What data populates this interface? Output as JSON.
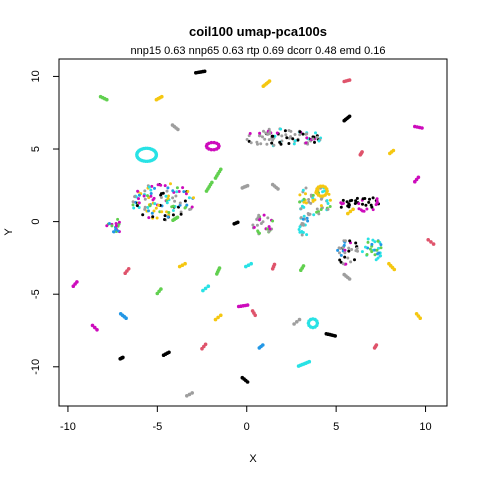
{
  "chart_data": {
    "type": "scatter",
    "title": "coil100 umap-pca100s",
    "subtitle": "nnp15 0.63 nnp65 0.63 rtp 0.69 dcorr 0.48 emd 0.16",
    "xlabel": "X",
    "ylabel": "Y",
    "xlim": [
      -10.5,
      11.2
    ],
    "ylim": [
      -12.7,
      11.2
    ],
    "xticks": [
      -10,
      -5,
      0,
      5,
      10
    ],
    "yticks": [
      -10,
      -5,
      0,
      5,
      10
    ],
    "grid": false,
    "legend": "none",
    "series_colors": {
      "pink": "#DF536B",
      "green": "#61D04F",
      "blue": "#2297E6",
      "cyan": "#28E2E5",
      "magenta": "#CD0BBC",
      "yellow": "#F5C710",
      "gray": "#9E9E9E",
      "black": "#000000"
    },
    "clusters": [
      {
        "color": "black",
        "x": -2.6,
        "y": 10.3,
        "dx": 0.5,
        "dy": 0.1,
        "n": 6
      },
      {
        "color": "yellow",
        "x": 1.1,
        "y": 9.5,
        "dx": 0.35,
        "dy": 0.35,
        "n": 5
      },
      {
        "color": "pink",
        "x": 5.6,
        "y": 9.7,
        "dx": 0.3,
        "dy": 0.1,
        "n": 4
      },
      {
        "color": "green",
        "x": -8.0,
        "y": 8.5,
        "dx": 0.35,
        "dy": -0.2,
        "n": 4
      },
      {
        "color": "yellow",
        "x": -4.9,
        "y": 8.5,
        "dx": 0.3,
        "dy": 0.2,
        "n": 4
      },
      {
        "color": "black",
        "x": 5.6,
        "y": 7.1,
        "dx": 0.3,
        "dy": 0.3,
        "n": 5
      },
      {
        "color": "magenta",
        "x": 9.6,
        "y": 6.5,
        "dx": 0.4,
        "dy": -0.1,
        "n": 4
      },
      {
        "color": "pink",
        "x": 6.4,
        "y": 4.7,
        "dx": 0.1,
        "dy": 0.2,
        "n": 4
      },
      {
        "color": "yellow",
        "x": 8.1,
        "y": 4.8,
        "dx": 0.2,
        "dy": 0.2,
        "n": 3
      },
      {
        "color": "gray",
        "x": -4.0,
        "y": 6.5,
        "dx": 0.3,
        "dy": -0.3,
        "n": 4
      },
      {
        "color": "green",
        "x": -1.6,
        "y": 3.3,
        "dx": 0.3,
        "dy": 0.6,
        "n": 5
      },
      {
        "color": "green",
        "x": -2.1,
        "y": 2.4,
        "dx": 0.3,
        "dy": 0.6,
        "n": 5
      },
      {
        "color": "gray",
        "x": 1.6,
        "y": 2.4,
        "dx": 0.3,
        "dy": -0.3,
        "n": 4
      },
      {
        "color": "gray",
        "x": -0.1,
        "y": 2.4,
        "dx": 0.3,
        "dy": 0.15,
        "n": 4
      },
      {
        "color": "magenta",
        "x": 9.5,
        "y": 2.9,
        "dx": 0.2,
        "dy": 0.3,
        "n": 3
      },
      {
        "color": "black",
        "x": -0.6,
        "y": -0.1,
        "dx": 0.2,
        "dy": 0.1,
        "n": 3
      },
      {
        "color": "green",
        "x": -4.0,
        "y": 0.2,
        "dx": 0.25,
        "dy": 0.2,
        "n": 4
      },
      {
        "color": "pink",
        "x": 10.3,
        "y": -1.4,
        "dx": 0.3,
        "dy": -0.3,
        "n": 3
      },
      {
        "color": "yellow",
        "x": 8.1,
        "y": -3.1,
        "dx": 0.3,
        "dy": -0.4,
        "n": 4
      },
      {
        "color": "yellow",
        "x": 5.8,
        "y": 0.7,
        "dx": 0.3,
        "dy": 0.3,
        "n": 3
      },
      {
        "color": "gray",
        "x": 5.6,
        "y": -3.8,
        "dx": 0.3,
        "dy": -0.3,
        "n": 4
      },
      {
        "color": "magenta",
        "x": -9.6,
        "y": -4.3,
        "dx": 0.2,
        "dy": 0.3,
        "n": 3
      },
      {
        "color": "pink",
        "x": -6.7,
        "y": -3.4,
        "dx": 0.2,
        "dy": 0.3,
        "n": 3
      },
      {
        "color": "yellow",
        "x": -3.6,
        "y": -3.0,
        "dx": 0.3,
        "dy": 0.2,
        "n": 3
      },
      {
        "color": "green",
        "x": -1.6,
        "y": -3.4,
        "dx": 0.15,
        "dy": 0.4,
        "n": 4
      },
      {
        "color": "cyan",
        "x": -2.3,
        "y": -4.6,
        "dx": 0.3,
        "dy": 0.3,
        "n": 3
      },
      {
        "color": "cyan",
        "x": 0.1,
        "y": -3.0,
        "dx": 0.3,
        "dy": 0.2,
        "n": 3
      },
      {
        "color": "pink",
        "x": 1.5,
        "y": -3.1,
        "dx": 0.1,
        "dy": 0.3,
        "n": 3
      },
      {
        "color": "green",
        "x": 3.1,
        "y": -3.2,
        "dx": 0.15,
        "dy": 0.3,
        "n": 3
      },
      {
        "color": "green",
        "x": -4.9,
        "y": -4.8,
        "dx": 0.2,
        "dy": 0.3,
        "n": 3
      },
      {
        "color": "blue",
        "x": -6.9,
        "y": -6.5,
        "dx": 0.3,
        "dy": -0.3,
        "n": 4
      },
      {
        "color": "magenta",
        "x": -0.2,
        "y": -5.8,
        "dx": 0.5,
        "dy": 0.1,
        "n": 5
      },
      {
        "color": "pink",
        "x": 0.4,
        "y": -6.3,
        "dx": 0.15,
        "dy": -0.3,
        "n": 3
      },
      {
        "color": "yellow",
        "x": -1.6,
        "y": -6.6,
        "dx": 0.3,
        "dy": 0.3,
        "n": 3
      },
      {
        "color": "gray",
        "x": 2.8,
        "y": -6.9,
        "dx": 0.3,
        "dy": 0.3,
        "n": 3
      },
      {
        "color": "yellow",
        "x": 9.6,
        "y": -6.5,
        "dx": 0.2,
        "dy": -0.3,
        "n": 3
      },
      {
        "color": "black",
        "x": 4.7,
        "y": -7.8,
        "dx": 0.5,
        "dy": -0.15,
        "n": 6
      },
      {
        "color": "magenta",
        "x": -8.5,
        "y": -7.3,
        "dx": 0.25,
        "dy": -0.3,
        "n": 3
      },
      {
        "color": "black",
        "x": -4.5,
        "y": -9.1,
        "dx": 0.3,
        "dy": 0.2,
        "n": 4
      },
      {
        "color": "black",
        "x": -7.0,
        "y": -9.4,
        "dx": 0.15,
        "dy": 0.1,
        "n": 5
      },
      {
        "color": "pink",
        "x": -2.4,
        "y": -8.6,
        "dx": 0.2,
        "dy": 0.3,
        "n": 3
      },
      {
        "color": "blue",
        "x": 0.8,
        "y": -8.6,
        "dx": 0.2,
        "dy": 0.2,
        "n": 3
      },
      {
        "color": "pink",
        "x": 7.2,
        "y": -8.6,
        "dx": 0.1,
        "dy": 0.2,
        "n": 3
      },
      {
        "color": "cyan",
        "x": 3.2,
        "y": -9.8,
        "dx": 0.6,
        "dy": 0.3,
        "n": 7
      },
      {
        "color": "gray",
        "x": -3.2,
        "y": -11.9,
        "dx": 0.3,
        "dy": 0.2,
        "n": 3
      },
      {
        "color": "black",
        "x": -0.1,
        "y": -10.9,
        "dx": 0.3,
        "dy": -0.3,
        "n": 4
      }
    ],
    "dense_groups": [
      {
        "x": -4.7,
        "y": 1.4,
        "rx": 1.8,
        "ry": 1.3,
        "n": 120,
        "colors": [
          "magenta",
          "yellow",
          "gray",
          "green",
          "blue",
          "cyan",
          "black"
        ]
      },
      {
        "x": 2.0,
        "y": 5.8,
        "rx": 2.3,
        "ry": 0.6,
        "n": 90,
        "colors": [
          "magenta",
          "gray",
          "cyan",
          "black",
          "gray"
        ]
      },
      {
        "x": 3.8,
        "y": 1.4,
        "rx": 1.0,
        "ry": 1.1,
        "n": 60,
        "colors": [
          "cyan",
          "gray",
          "yellow",
          "green",
          "gray"
        ]
      },
      {
        "x": 6.4,
        "y": 1.2,
        "rx": 1.4,
        "ry": 0.5,
        "n": 40,
        "colors": [
          "black",
          "magenta",
          "black"
        ]
      },
      {
        "x": 5.6,
        "y": -2.0,
        "rx": 0.6,
        "ry": 1.0,
        "n": 35,
        "colors": [
          "magenta",
          "gray",
          "black",
          "blue"
        ]
      },
      {
        "x": 7.0,
        "y": -1.9,
        "rx": 0.6,
        "ry": 0.8,
        "n": 30,
        "colors": [
          "green",
          "blue",
          "cyan"
        ]
      },
      {
        "x": 0.9,
        "y": -0.2,
        "rx": 0.6,
        "ry": 0.7,
        "n": 30,
        "colors": [
          "magenta",
          "gray",
          "green"
        ]
      },
      {
        "x": 3.2,
        "y": -0.3,
        "rx": 0.3,
        "ry": 0.7,
        "n": 20,
        "colors": [
          "cyan",
          "blue",
          "gray"
        ]
      },
      {
        "x": -7.4,
        "y": -0.3,
        "rx": 0.5,
        "ry": 0.5,
        "n": 20,
        "colors": [
          "blue",
          "green",
          "magenta"
        ]
      }
    ],
    "rings": [
      {
        "color": "cyan",
        "x": -5.6,
        "y": 4.6,
        "rx": 0.55,
        "ry": 0.45,
        "n": 30
      },
      {
        "color": "magenta",
        "x": -1.9,
        "y": 5.2,
        "rx": 0.35,
        "ry": 0.25,
        "n": 14
      },
      {
        "color": "yellow",
        "x": 4.2,
        "y": 2.1,
        "rx": 0.3,
        "ry": 0.35,
        "n": 14
      },
      {
        "color": "cyan",
        "x": 3.7,
        "y": -7.0,
        "rx": 0.25,
        "ry": 0.3,
        "n": 12
      }
    ]
  }
}
